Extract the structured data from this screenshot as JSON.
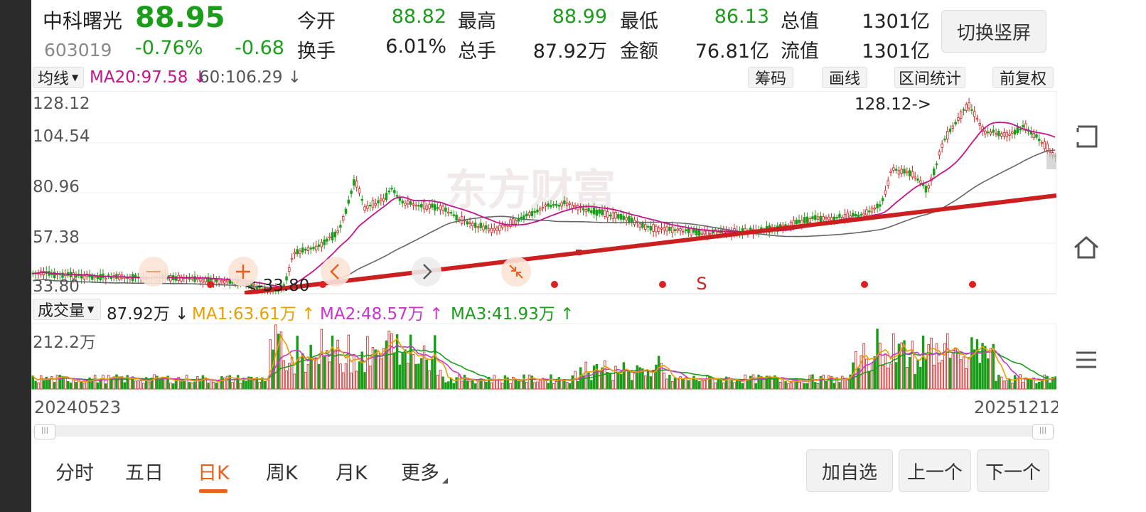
{
  "stock": {
    "name": "中科曙光",
    "code": "603019",
    "price": "88.95",
    "change_pct": "-0.76%",
    "change": "-0.68"
  },
  "quote": [
    {
      "label": "今开",
      "value": "88.82",
      "color": "#1a9e1a"
    },
    {
      "label": "最高",
      "value": "88.99",
      "color": "#1a9e1a"
    },
    {
      "label": "最低",
      "value": "86.13",
      "color": "#1a9e1a"
    },
    {
      "label": "总值",
      "value": "1301亿",
      "color": "#222222"
    },
    {
      "label": "换手",
      "value": "6.01%",
      "color": "#222222"
    },
    {
      "label": "总手",
      "value": "87.92万",
      "color": "#222222"
    },
    {
      "label": "金额",
      "value": "76.81亿",
      "color": "#222222"
    },
    {
      "label": "流值",
      "value": "1301亿",
      "color": "#222222"
    }
  ],
  "orientation_button": "切换竖屏",
  "ma_bar": {
    "selector": "均线",
    "ma20": "MA20:97.58 ↓",
    "ma60": "60:106.29 ↓"
  },
  "tools": [
    "筹码",
    "画线",
    "区间统计",
    "前复权"
  ],
  "price_axis": [
    "128.12",
    "104.54",
    "80.96",
    "57.38",
    "33.80"
  ],
  "price_annotations": {
    "high": "128.12->",
    "low": "<-33.80"
  },
  "signal_label": "S",
  "watermark": "东方财富",
  "volume_bar": {
    "selector": "成交量",
    "vol": "87.92万 ↓",
    "ma1": "MA1:63.61万 ↑",
    "ma2": "MA2:48.57万 ↑",
    "ma3": "MA3:41.93万 ↑"
  },
  "volume_axis_top": "212.2万",
  "dates": {
    "start": "20240523",
    "end": "20251212"
  },
  "tabs": [
    {
      "label": "分时",
      "active": false
    },
    {
      "label": "五日",
      "active": false
    },
    {
      "label": "日K",
      "active": true
    },
    {
      "label": "周K",
      "active": false
    },
    {
      "label": "月K",
      "active": false
    },
    {
      "label": "更多",
      "active": false
    }
  ],
  "actions": [
    "加自选",
    "上一个",
    "下一个"
  ],
  "right_icons": [
    "back-icon",
    "home-icon",
    "menu-icon"
  ],
  "colors": {
    "up": "#d42020",
    "down": "#1a9e1a",
    "ma20": "#c4148c",
    "ma60": "#666666",
    "vol_ma1": "#e8a000",
    "vol_ma2": "#cc33cc",
    "vol_ma3": "#1a9e1a",
    "accent": "#e8601c",
    "trendline": "#cc1f1f"
  }
}
